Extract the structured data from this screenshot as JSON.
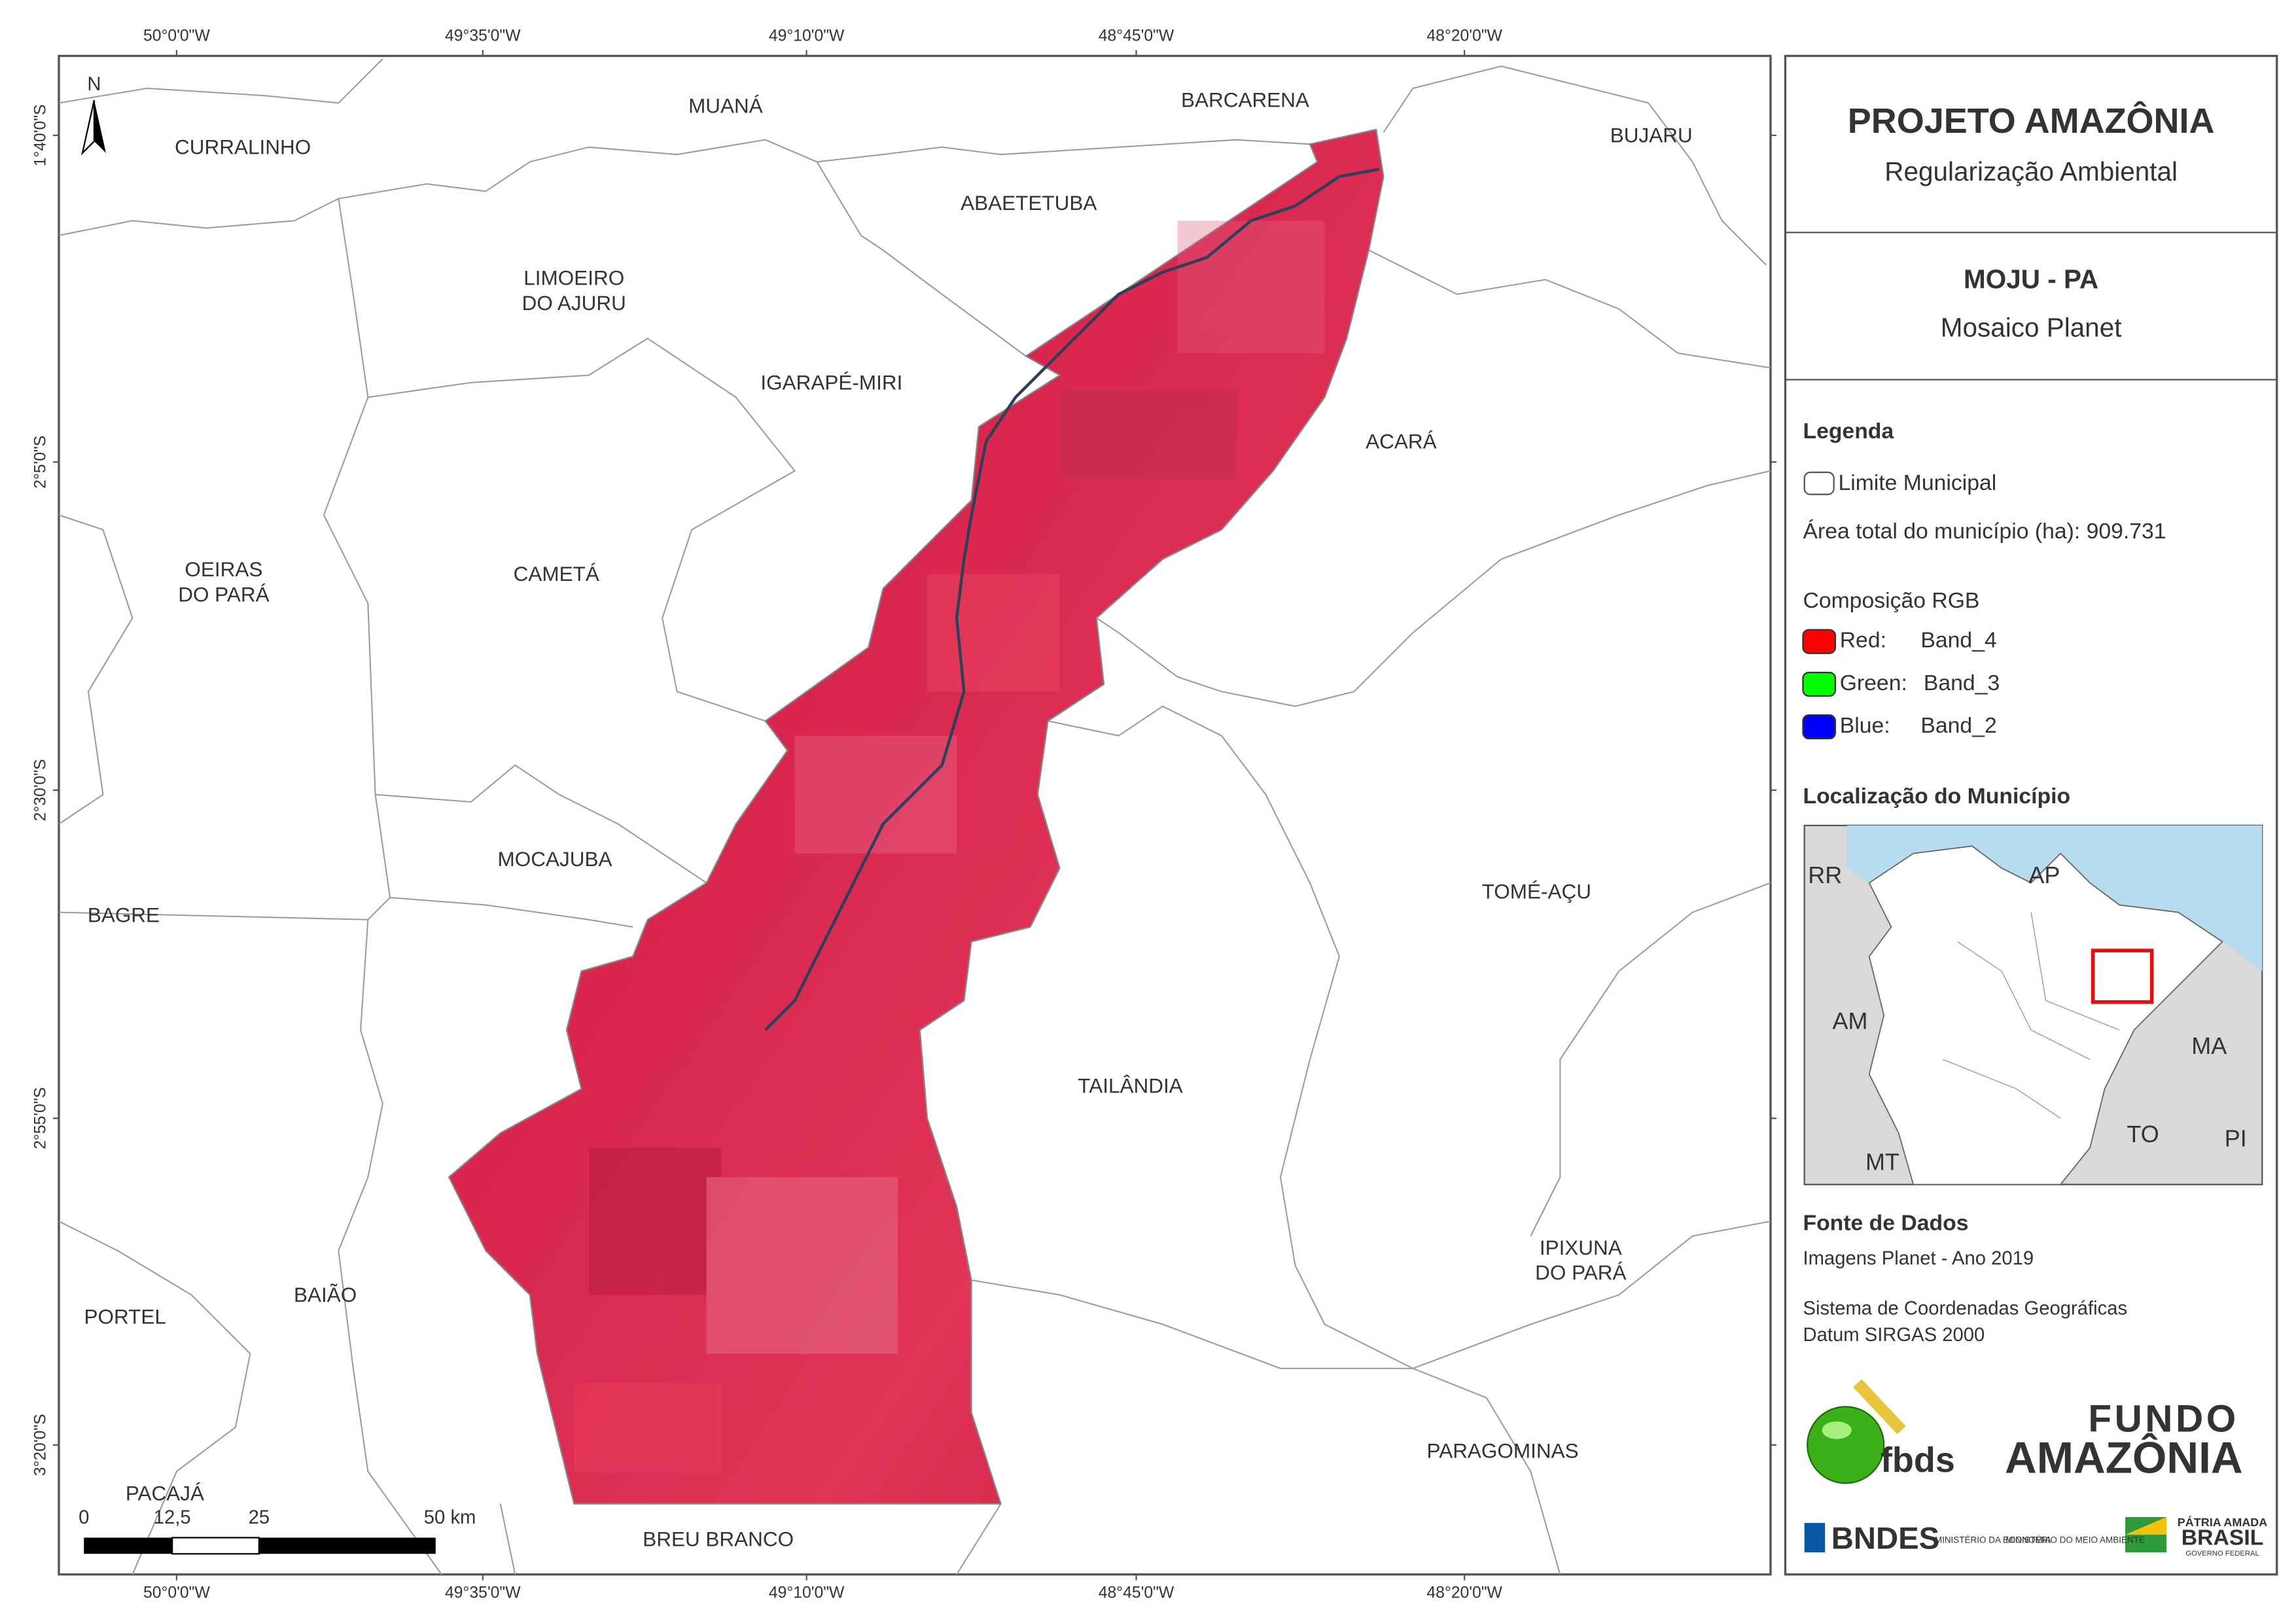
{
  "header": {
    "title": "PROJETO AMAZÔNIA",
    "subtitle": "Regularização Ambiental"
  },
  "map_title": {
    "name": "MOJU - PA",
    "subtitle": "Mosaico Planet"
  },
  "legend": {
    "title": "Legenda",
    "boundary": "Limite Municipal",
    "area": "Área total do município (ha): 909.731",
    "rgb_title": "Composição RGB",
    "bands": [
      {
        "label": "Red:",
        "band": "Band_4",
        "color": "#ff0000"
      },
      {
        "label": "Green:",
        "band": "Band_3",
        "color": "#00ff00"
      },
      {
        "label": "Blue:",
        "band": "Band_2",
        "color": "#0000ff"
      }
    ]
  },
  "location": {
    "title": "Localização do Município",
    "states": [
      "RR",
      "AP",
      "AM",
      "MA",
      "TO",
      "MT",
      "PI"
    ]
  },
  "sources": {
    "title": "Fonte de Dados",
    "lines": [
      "Imagens Planet - Ano 2019",
      "Sistema de Coordenadas Geográficas",
      "Datum SIRGAS 2000"
    ]
  },
  "logos": {
    "fbds": "fbds",
    "fundo": "FUNDO",
    "amazonia": "AMAZÔNIA",
    "bndes": "BNDES",
    "economia": "MINISTÉRIO DA ECONOMIA",
    "meio_ambiente": "MINISTÉRIO DO MEIO AMBIENTE",
    "patria": "PÁTRIA AMADA",
    "brasil": "BRASIL",
    "governo": "GOVERNO FEDERAL"
  },
  "grid": {
    "lon": [
      "50°0'0\"W",
      "49°35'0\"W",
      "49°10'0\"W",
      "48°45'0\"W",
      "48°20'0\"W"
    ],
    "lat": [
      "1°40'0\"S",
      "2°5'0\"S",
      "2°30'0\"S",
      "2°55'0\"S",
      "3°20'0\"S"
    ]
  },
  "north": "N",
  "scale": {
    "labels": [
      "0",
      "12,5",
      "25",
      "50 km"
    ]
  },
  "municipalities": [
    {
      "lines": [
        "CURRALINHO"
      ]
    },
    {
      "lines": [
        "MUANÁ"
      ]
    },
    {
      "lines": [
        "BARCARENA"
      ]
    },
    {
      "lines": [
        "BUJARU"
      ]
    },
    {
      "lines": [
        "ABAETETUBA"
      ]
    },
    {
      "lines": [
        "LIMOEIRO",
        "DO AJURU"
      ]
    },
    {
      "lines": [
        "IGARAPÉ-MIRI"
      ]
    },
    {
      "lines": [
        "ACARÁ"
      ]
    },
    {
      "lines": [
        "OEIRAS",
        "DO PARÁ"
      ]
    },
    {
      "lines": [
        "CAMETÁ"
      ]
    },
    {
      "lines": [
        "MOCAJUBA"
      ]
    },
    {
      "lines": [
        "TOMÉ-AÇU"
      ]
    },
    {
      "lines": [
        "BAGRE"
      ]
    },
    {
      "lines": [
        "TAILÂNDIA"
      ]
    },
    {
      "lines": [
        "IPIXUNA",
        "DO PARÁ"
      ]
    },
    {
      "lines": [
        "PORTEL"
      ]
    },
    {
      "lines": [
        "BAIÃO"
      ]
    },
    {
      "lines": [
        "PARAGOMINAS"
      ]
    },
    {
      "lines": [
        "PACAJÁ"
      ]
    },
    {
      "lines": [
        "BREU BRANCO"
      ]
    }
  ]
}
